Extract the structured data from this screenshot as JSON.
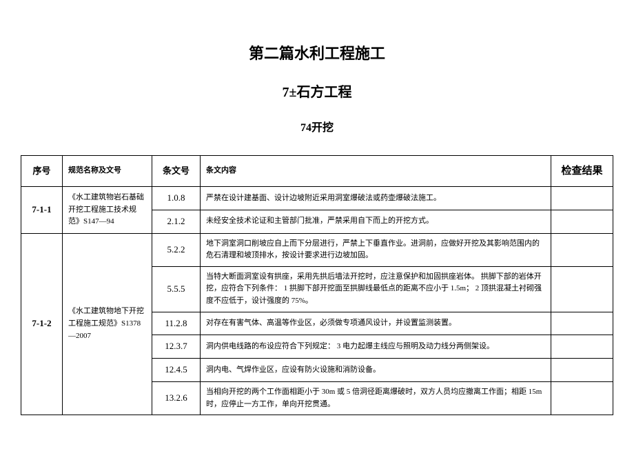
{
  "titles": {
    "main": "第二篇水利工程施工",
    "sub": "7±石方工程",
    "section": "74开挖"
  },
  "headers": {
    "seq": "序号",
    "spec": "规范名称及文号",
    "clause": "条文号",
    "content": "条文内容",
    "result": "检查结果"
  },
  "rows": {
    "r1": {
      "seq": "7-1-1",
      "spec": "《水工建筑物岩石基础开挖工程施工技术规范》S147—94",
      "c1": {
        "clause": "1.0.8",
        "content": "严禁在设计建基面、设计边坡附近采用洞室爆破法或药壶爆破法施工。"
      },
      "c2": {
        "clause": "2.1.2",
        "content": "未经安全技术论证和主管部门批准，严禁采用自下而上的开挖方式。"
      }
    },
    "r2": {
      "seq": "7-1-2",
      "spec": "《水工建筑物地下开挖工程施工规范》S1378—2007",
      "c1": {
        "clause": "5.2.2",
        "content": "地下洞室洞口削坡应自上而下分层进行，严禁上下垂直作业。进洞前，应做好开挖及其影响范围内的危石清理和坡顶排水，按设计要求进行边坡加固。"
      },
      "c2": {
        "clause": "5.5.5",
        "content": "当特大断面洞室设有拱座，采用先拱后墙法开挖时，应注意保护和加固拱座岩体。\n拱脚下部的岩体开挖，应符合下列条件：\n1 拱脚下部开挖面至拱脚线最低点的距离不应小于 1.5m；\n2 顶拱混凝土衬砌强度不应低于，设计强度的 75%。"
      },
      "c3": {
        "clause": "11.2.8",
        "content": "对存在有害气体、高温等作业区，必须做专项通风设计，并设置监测装置。"
      },
      "c4": {
        "clause": "12.3.7",
        "content": "洞内供电线路的布设应符合下列规定：\n3 电力起爆主线应与照明及动力线分两侧架设。"
      },
      "c5": {
        "clause": "12.4.5",
        "content": "洞内电、气焊作业区，应设有防火设施和消防设备。"
      },
      "c6": {
        "clause": "13.2.6",
        "content": "当相向开挖的两个工作面相距小于 30m 或 5 倍洞径距离爆破时，双方人员均应撤离工作面；相距 15m 时，应停止一方工作，单向开挖贯通。"
      }
    }
  },
  "styling": {
    "page_bg": "#ffffff",
    "text_color": "#000000",
    "border_color": "#000000",
    "font_family": "SimSun",
    "title_fontsize": 22,
    "subtitle_fontsize": 20,
    "section_fontsize": 16,
    "header_fontsize": 15,
    "cell_fontsize": 12,
    "content_fontsize": 11,
    "col_widths": {
      "seq": 60,
      "spec": 130,
      "clause": 70,
      "result": 90
    }
  }
}
